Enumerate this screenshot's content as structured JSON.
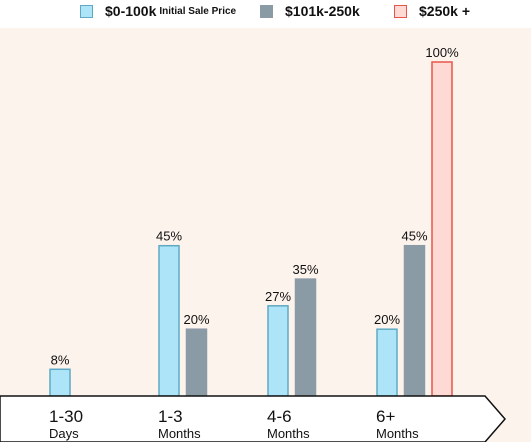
{
  "chart_data": {
    "type": "bar",
    "categories": [
      {
        "line1": "1-30",
        "line2": "Days"
      },
      {
        "line1": "1-3",
        "line2": "Months"
      },
      {
        "line1": "4-6",
        "line2": "Months"
      },
      {
        "line1": "6+",
        "line2": "Months"
      }
    ],
    "series": [
      {
        "name": "$0-100k",
        "name_suffix": "Initial Sale Price",
        "values": [
          8,
          45,
          27,
          20
        ],
        "labels": [
          "8%",
          "45%",
          "27%",
          "20%"
        ],
        "fill": "#aee4f7",
        "stroke": "#5fa9c4"
      },
      {
        "name": "$101k-250k",
        "values": [
          null,
          20,
          35,
          45
        ],
        "labels": [
          null,
          "20%",
          "35%",
          "45%"
        ],
        "fill": "#8b9ba6",
        "stroke": "#8b9ba6"
      },
      {
        "name": "$250k +",
        "values": [
          null,
          null,
          null,
          100
        ],
        "labels": [
          null,
          null,
          null,
          "100%"
        ],
        "fill": "#ffd9d4",
        "stroke": "#e8554a"
      }
    ],
    "ylim": [
      0,
      100
    ],
    "grid": false,
    "legend_position": "top",
    "background": "#fdf3ed"
  }
}
